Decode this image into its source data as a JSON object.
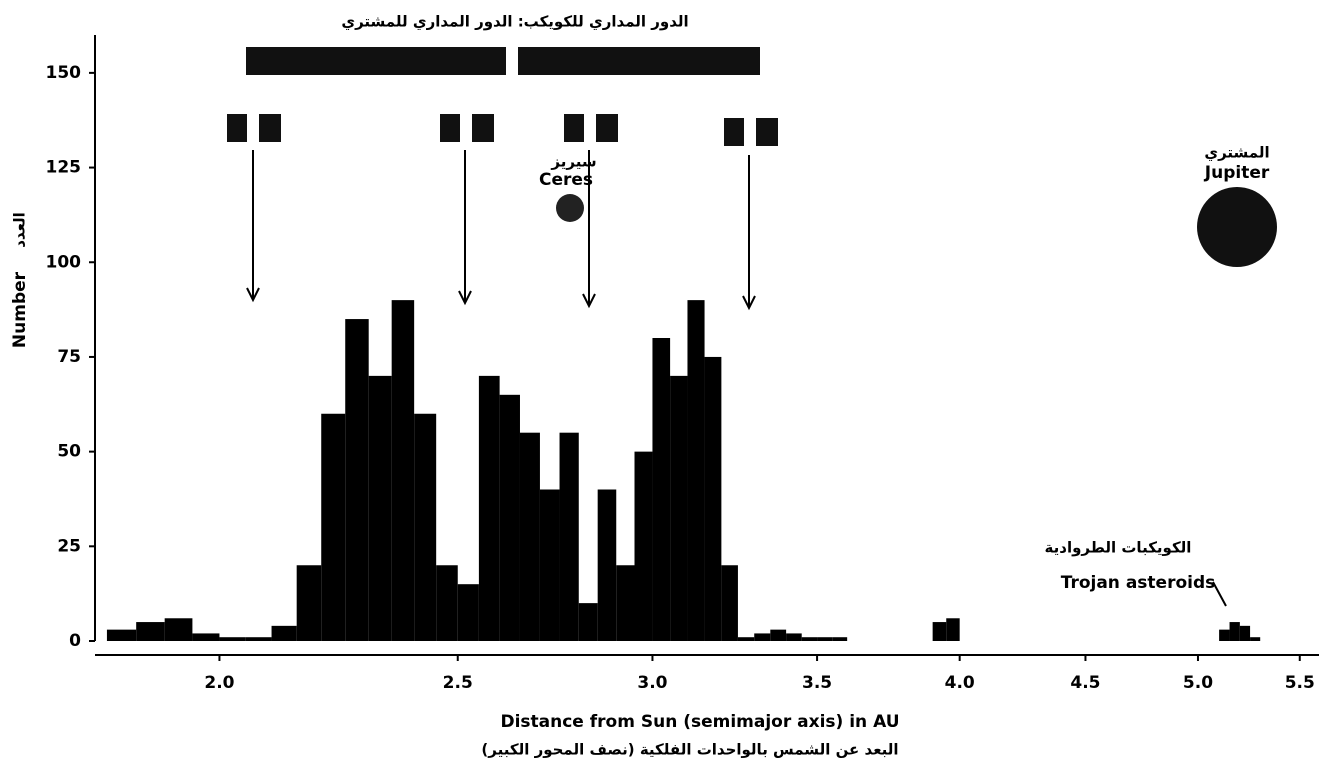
{
  "chart_data": {
    "type": "histogram",
    "title": "الدور المداري للكويكب: الدور المداري للمشتري",
    "x_label": "Distance from Sun (semimajor axis) in AU",
    "x_label_ar": "البعد عن الشمس بالواحدات الفلكية (نصف المحور الكبير)",
    "y_label": "Number",
    "y_label_ar": "العدد",
    "annotations": {
      "ceres_ar": "سيريز",
      "ceres": "Ceres",
      "jupiter_ar": "المشتري",
      "jupiter": "Jupiter",
      "trojan_ar": "الكويكبات الطروادية",
      "trojan": "Trojan asteroids"
    },
    "color": "#000000",
    "xscale": "log",
    "xlim": [
      1.78,
      5.6
    ],
    "ylim": [
      0,
      160
    ],
    "xticks": [
      {
        "value": 2,
        "label": "2.0"
      },
      2.5,
      {
        "value": 3,
        "label": "3.0"
      },
      3.5,
      {
        "value": 4,
        "label": "4.0"
      },
      4.5,
      {
        "value": 5,
        "label": "5.0"
      },
      5.5
    ],
    "yticks": [
      0,
      25,
      50,
      75,
      100,
      125,
      150
    ],
    "bins": [
      1.8,
      1.85,
      1.9,
      1.95,
      2.0,
      2.05,
      2.1,
      2.15,
      2.2,
      2.25,
      2.3,
      2.35,
      2.4,
      2.45,
      2.5,
      2.55,
      2.6,
      2.65,
      2.7,
      2.75,
      2.8,
      2.85,
      2.9,
      2.95,
      3.0,
      3.05,
      3.1,
      3.15,
      3.2,
      3.25,
      3.3,
      3.35,
      3.4,
      3.45,
      3.5,
      3.55,
      3.6,
      3.65,
      3.7,
      3.75,
      3.8,
      3.85,
      3.9,
      3.95,
      4.0,
      4.05,
      4.1,
      4.15,
      4.2,
      4.25,
      4.3,
      4.35,
      4.4,
      4.45,
      4.5,
      4.55,
      4.6,
      4.65,
      4.7,
      4.75,
      4.8,
      4.85,
      4.9,
      4.95,
      5.0,
      5.05,
      5.1,
      5.15,
      5.2,
      5.25,
      5.3
    ],
    "values": [
      3,
      5,
      6,
      2,
      1,
      1,
      4,
      20,
      60,
      85,
      70,
      90,
      60,
      20,
      15,
      70,
      65,
      55,
      40,
      55,
      10,
      40,
      20,
      50,
      80,
      70,
      90,
      75,
      20,
      1,
      2,
      3,
      2,
      1,
      1,
      1,
      0,
      0,
      0,
      0,
      0,
      0,
      5,
      6,
      0,
      0,
      0,
      0,
      0,
      0,
      0,
      0,
      0,
      0,
      0,
      0,
      0,
      0,
      0,
      0,
      0,
      0,
      0,
      0,
      0,
      0,
      3,
      5,
      4,
      1
    ]
  }
}
